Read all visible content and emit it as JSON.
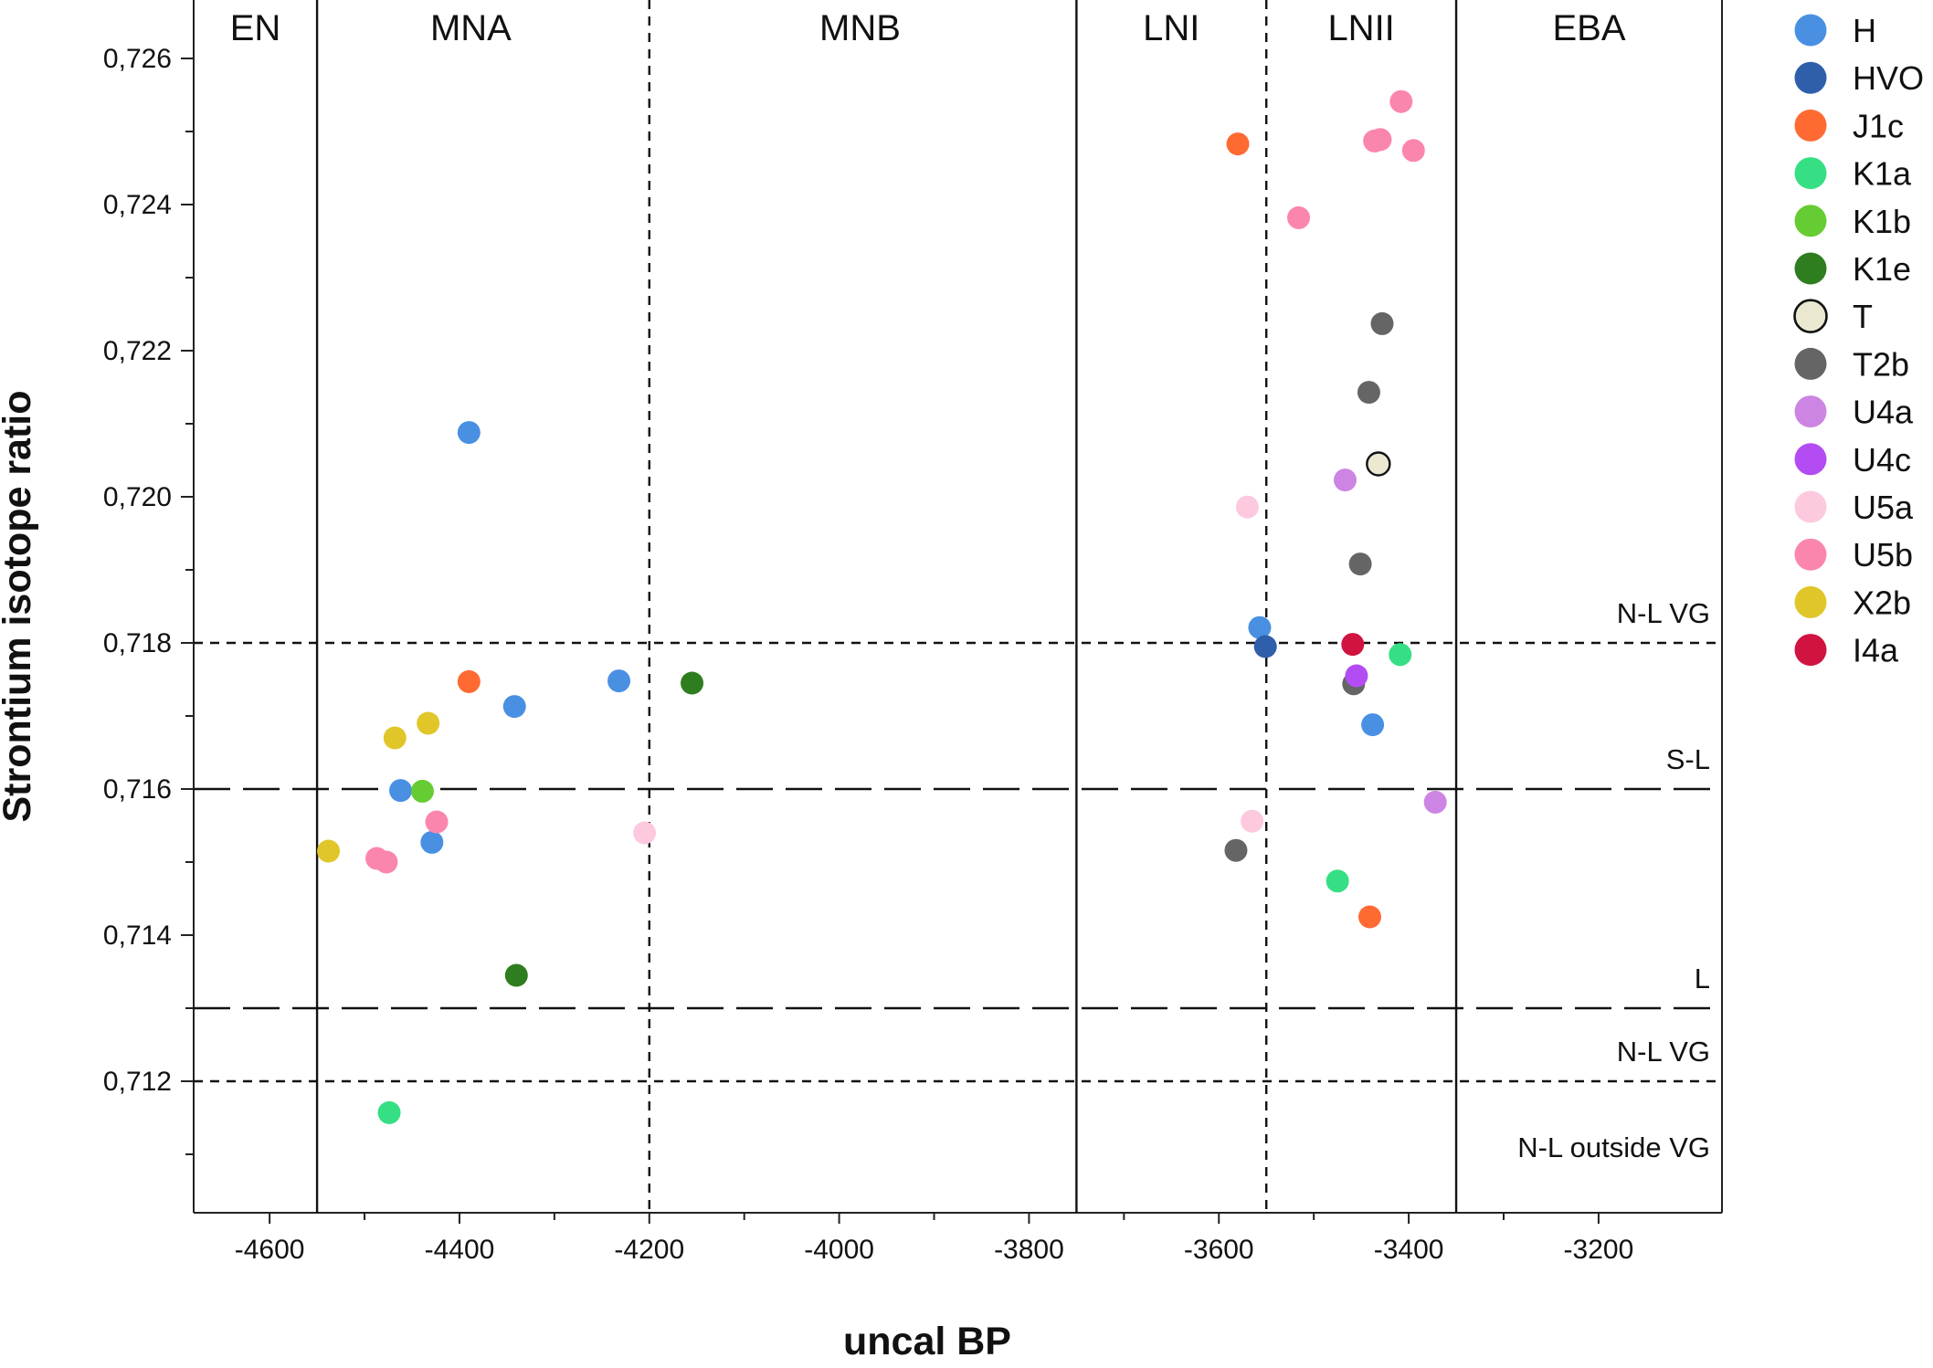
{
  "chart_data": {
    "type": "scatter",
    "title": "",
    "xlabel": "uncal BP",
    "ylabel": "Strontium isotope ratio",
    "xlim": [
      -4680,
      -3070
    ],
    "ylim": [
      0.7102,
      0.7268
    ],
    "x_ticks": [
      -4600,
      -4400,
      -4200,
      -4000,
      -3800,
      -3600,
      -3400,
      -3200
    ],
    "x_tick_labels": [
      "-4600",
      "-4400",
      "-4200",
      "-4000",
      "-3800",
      "-3600",
      "-3400",
      "-3200"
    ],
    "x_minor_ticks": [
      -4500,
      -4300,
      -4100,
      -3900,
      -3700,
      -3500,
      -3300
    ],
    "y_ticks": [
      0.712,
      0.714,
      0.716,
      0.718,
      0.72,
      0.722,
      0.724,
      0.726
    ],
    "y_tick_labels": [
      "0,712",
      "0,714",
      "0,716",
      "0,718",
      "0,720",
      "0,722",
      "0,724",
      "0,726"
    ],
    "y_minor_ticks": [
      0.711,
      0.713,
      0.715,
      0.717,
      0.719,
      0.721,
      0.723,
      0.725
    ],
    "grid": false,
    "legend_position": "right",
    "periods": [
      {
        "label": "EN",
        "center": -4615
      },
      {
        "label": "MNA",
        "center": -4388
      },
      {
        "label": "MNB",
        "center": -3978
      },
      {
        "label": "LNI",
        "center": -3650
      },
      {
        "label": "LNII",
        "center": -3450
      },
      {
        "label": "EBA",
        "center": -3210
      }
    ],
    "vertical_lines": [
      {
        "x": -4550,
        "style": "solid"
      },
      {
        "x": -4200,
        "style": "dashed"
      },
      {
        "x": -3750,
        "style": "solid"
      },
      {
        "x": -3550,
        "style": "dashed"
      },
      {
        "x": -3350,
        "style": "solid"
      }
    ],
    "horizontal_lines": [
      {
        "y": 0.718,
        "style": "dashed",
        "label": "N-L VG"
      },
      {
        "y": 0.716,
        "style": "longdash",
        "label": "S-L"
      },
      {
        "y": 0.713,
        "style": "longdash",
        "label": "L"
      },
      {
        "y": 0.712,
        "style": "dashed",
        "label": "N-L VG"
      }
    ],
    "region_labels": [
      {
        "label": "N-L outside VG",
        "y": 0.7111
      }
    ],
    "series": [
      {
        "name": "H",
        "color": "#4a90e2",
        "points": [
          [
            -4390,
            0.72088
          ],
          [
            -4342,
            0.71713
          ],
          [
            -4232,
            0.71748
          ],
          [
            -4462,
            0.71598
          ],
          [
            -4429,
            0.71527
          ],
          [
            -3557,
            0.71821
          ],
          [
            -3438,
            0.71688
          ]
        ]
      },
      {
        "name": "HVO",
        "color": "#2f5fab",
        "points": [
          [
            -3551,
            0.71795
          ]
        ]
      },
      {
        "name": "J1c",
        "color": "#ff6a33",
        "points": [
          [
            -3580,
            0.72483
          ],
          [
            -4390,
            0.71747
          ],
          [
            -3441,
            0.71425
          ]
        ]
      },
      {
        "name": "K1a",
        "color": "#36df84",
        "points": [
          [
            -3409,
            0.71784
          ],
          [
            -3475,
            0.71474
          ],
          [
            -4474,
            0.71157
          ]
        ]
      },
      {
        "name": "K1b",
        "color": "#66cc33",
        "points": [
          [
            -4439,
            0.71597
          ]
        ]
      },
      {
        "name": "K1e",
        "color": "#2e7d1f",
        "points": [
          [
            -4155,
            0.71745
          ],
          [
            -4340,
            0.71345
          ]
        ]
      },
      {
        "name": "T",
        "color": "#ebe8d2",
        "stroke": "#111111",
        "points": [
          [
            -3432,
            0.72045
          ]
        ]
      },
      {
        "name": "T2b",
        "color": "#656565",
        "points": [
          [
            -3428,
            0.72237
          ],
          [
            -3442,
            0.72143
          ],
          [
            -3451,
            0.71908
          ],
          [
            -3458,
            0.71744
          ],
          [
            -3582,
            0.71516
          ]
        ]
      },
      {
        "name": "U4a",
        "color": "#cc85e3",
        "points": [
          [
            -3467,
            0.72023
          ],
          [
            -3372,
            0.71582
          ]
        ]
      },
      {
        "name": "U4c",
        "color": "#b34cf2",
        "points": [
          [
            -3455,
            0.71755
          ]
        ]
      },
      {
        "name": "U5a",
        "color": "#fcc9df",
        "points": [
          [
            -3570,
            0.71986
          ],
          [
            -4205,
            0.7154
          ],
          [
            -3565,
            0.71556
          ]
        ]
      },
      {
        "name": "U5b",
        "color": "#fb86ad",
        "points": [
          [
            -3408,
            0.72541
          ],
          [
            -3436,
            0.72487
          ],
          [
            -3430,
            0.72489
          ],
          [
            -3395,
            0.72474
          ],
          [
            -3516,
            0.72382
          ],
          [
            -4424,
            0.71555
          ],
          [
            -4487,
            0.71505
          ],
          [
            -4477,
            0.715
          ]
        ]
      },
      {
        "name": "X2b",
        "color": "#e0c629",
        "points": [
          [
            -4468,
            0.7167
          ],
          [
            -4433,
            0.7169
          ],
          [
            -4538,
            0.71515
          ]
        ]
      },
      {
        "name": "I4a",
        "color": "#d01340",
        "points": [
          [
            -3459,
            0.71798
          ]
        ]
      }
    ]
  }
}
